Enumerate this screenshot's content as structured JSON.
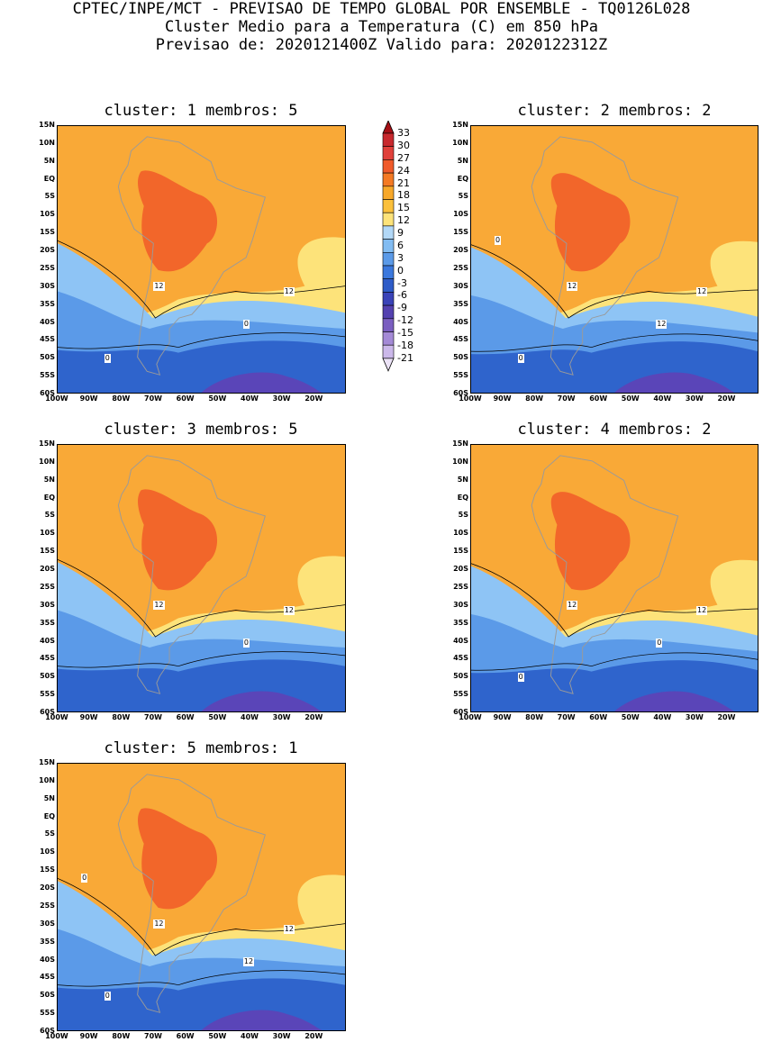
{
  "header": {
    "line1": "CPTEC/INPE/MCT - PREVISAO DE TEMPO GLOBAL POR ENSEMBLE - TQ0126L028",
    "line2": "Cluster Medio para a Temperatura (C) em 850 hPa",
    "line3": "Previsao de: 2020121400Z   Valido para: 2020122312Z"
  },
  "axes": {
    "lat_labels": [
      "15N",
      "10N",
      "5N",
      "EQ",
      "5S",
      "10S",
      "15S",
      "20S",
      "25S",
      "30S",
      "35S",
      "40S",
      "45S",
      "50S",
      "55S",
      "60S"
    ],
    "lon_labels": [
      "100W",
      "90W",
      "80W",
      "70W",
      "60W",
      "50W",
      "40W",
      "30W",
      "20W"
    ]
  },
  "panels": [
    {
      "title": "cluster: 1  membros: 5",
      "contour_labels": [
        "12",
        "12",
        "0",
        "0"
      ]
    },
    {
      "title": "cluster: 2  membros: 2",
      "contour_labels": [
        "12",
        "12",
        "12",
        "0",
        "0"
      ]
    },
    {
      "title": "cluster: 3  membros: 5",
      "contour_labels": [
        "12",
        "12",
        "0"
      ]
    },
    {
      "title": "cluster: 4  membros: 2",
      "contour_labels": [
        "12",
        "12",
        "0",
        "0"
      ]
    },
    {
      "title": "cluster: 5  membros: 1",
      "contour_labels": [
        "12",
        "12",
        "12",
        "0",
        "0"
      ]
    }
  ],
  "colorbar": {
    "labels": [
      "33",
      "30",
      "27",
      "24",
      "21",
      "18",
      "15",
      "12",
      "9",
      "6",
      "3",
      "0",
      "-3",
      "-6",
      "-9",
      "-12",
      "-15",
      "-18",
      "-21"
    ],
    "colors": [
      "#a50f15",
      "#c8292e",
      "#e0403a",
      "#f05a2a",
      "#f47a24",
      "#f7a82a",
      "#fbc03b",
      "#fde37a",
      "#b2d8f7",
      "#82bcf2",
      "#5b9ae8",
      "#3b78dd",
      "#2e5cc8",
      "#3a43b8",
      "#5441b0",
      "#7a5ec0",
      "#a48ad6",
      "#cbb8ea",
      "#ece3f7"
    ],
    "legend_title": ""
  },
  "colors": {
    "warm_deep": "#f2662a",
    "warm_mid": "#f9a937",
    "warm_light": "#fec44b",
    "yellow": "#fde37a",
    "blue_light": "#8ec4f5",
    "blue_mid": "#5b9ae8",
    "blue_dark": "#2f64cc",
    "purple": "#5a45b8",
    "land_line": "#9a9a9a"
  }
}
